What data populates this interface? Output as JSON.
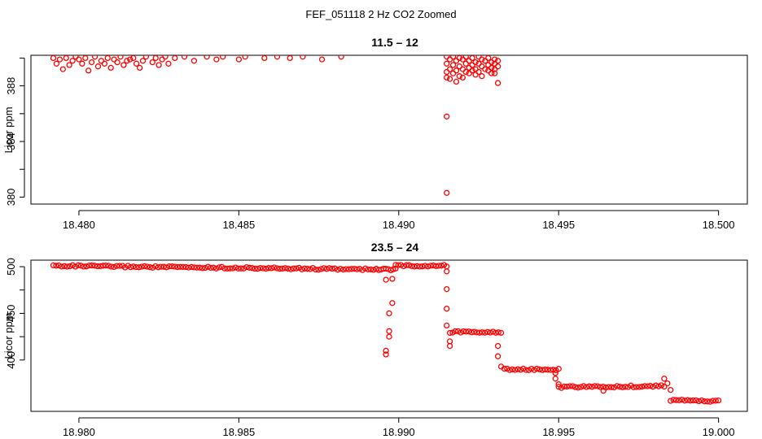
{
  "figure_title": "FEF_051118  2 Hz CO2 Zoomed",
  "chart_data": [
    {
      "type": "scatter",
      "title": "11.5 – 12",
      "xlabel": "",
      "ylabel": "Licor ppm",
      "xlim": [
        18.4785,
        18.5009
      ],
      "ylim": [
        379.5,
        390.2
      ],
      "x_ticks": [
        "18.480",
        "18.485",
        "18.490",
        "18.495",
        "18.500"
      ],
      "y_ticks": [
        "380",
        "384",
        "388"
      ],
      "grid": false,
      "marker": "open-circle",
      "color": "#ff0000",
      "series": [
        {
          "x": [
            18.4792,
            18.4793,
            18.4794,
            18.4795,
            18.4796,
            18.4797,
            18.4798,
            18.4799,
            18.48,
            18.4801,
            18.4802,
            18.4803,
            18.4804,
            18.4805,
            18.4806,
            18.4807,
            18.4808,
            18.4809,
            18.481,
            18.4811,
            18.4812,
            18.4813,
            18.4814,
            18.4815,
            18.4816,
            18.4817,
            18.4818,
            18.4819,
            18.482,
            18.4821,
            18.4823,
            18.4824,
            18.4825,
            18.4826,
            18.4827,
            18.4828,
            18.483,
            18.4833,
            18.4836,
            18.484,
            18.4843,
            18.4845,
            18.485,
            18.4852,
            18.4858,
            18.4862,
            18.4866,
            18.487,
            18.4876,
            18.4882,
            18.4915,
            18.4915,
            18.4915,
            18.4915,
            18.4915,
            18.4915,
            18.4916,
            18.4916,
            18.4916,
            18.4917,
            18.4917,
            18.4917,
            18.4918,
            18.4918,
            18.4918,
            18.4919,
            18.4919,
            18.4919,
            18.492,
            18.492,
            18.492,
            18.4921,
            18.4921,
            18.4921,
            18.4922,
            18.4922,
            18.4922,
            18.4923,
            18.4923,
            18.4923,
            18.4924,
            18.4924,
            18.4924,
            18.4925,
            18.4925,
            18.4925,
            18.4926,
            18.4926,
            18.4926,
            18.4927,
            18.4927,
            18.4928,
            18.4928,
            18.4928,
            18.4929,
            18.4929,
            18.4929,
            18.493,
            18.493,
            18.493,
            18.493,
            18.4931,
            18.4931,
            18.4931
          ],
          "y": [
            390.0,
            389.6,
            389.9,
            389.2,
            390.0,
            389.5,
            389.8,
            390.1,
            389.9,
            389.6,
            390.0,
            389.1,
            389.7,
            390.1,
            389.4,
            389.8,
            389.6,
            390.0,
            389.3,
            389.9,
            389.7,
            390.1,
            389.5,
            389.8,
            389.9,
            390.0,
            389.6,
            389.3,
            389.8,
            390.1,
            389.7,
            390.0,
            389.5,
            389.9,
            390.1,
            389.6,
            390.0,
            390.1,
            389.8,
            390.1,
            389.9,
            390.1,
            389.9,
            390.1,
            390.0,
            390.1,
            390.0,
            390.1,
            389.9,
            390.1,
            390.1,
            389.6,
            389.0,
            388.6,
            385.8,
            380.3,
            389.9,
            389.2,
            388.5,
            390.1,
            389.5,
            388.9,
            389.8,
            389.1,
            388.3,
            390.0,
            389.4,
            388.7,
            389.9,
            389.2,
            388.6,
            390.1,
            389.6,
            389.0,
            389.8,
            389.3,
            388.9,
            390.0,
            389.5,
            389.1,
            389.7,
            389.2,
            388.8,
            390.1,
            389.6,
            389.0,
            389.9,
            389.4,
            388.7,
            389.8,
            389.2,
            390.0,
            389.5,
            389.1,
            389.7,
            389.3,
            388.9,
            389.9,
            389.6,
            389.2,
            388.9,
            389.8,
            389.4,
            388.2
          ]
        }
      ]
    },
    {
      "type": "scatter",
      "title": "23.5 – 24",
      "xlabel": "",
      "ylabel": "Licor ppm",
      "xlim": [
        18.9785,
        19.0009
      ],
      "ylim": [
        345,
        507
      ],
      "x_ticks": [
        "18.980",
        "18.985",
        "18.990",
        "18.995",
        "19.000"
      ],
      "y_ticks": [
        "400",
        "450",
        "500"
      ],
      "grid": false,
      "marker": "open-circle",
      "color": "#ff0000",
      "series": [
        {
          "x": [
            18.9896,
            18.9896,
            18.9896,
            18.9897,
            18.9897,
            18.9897,
            18.9898,
            18.9898,
            18.9915,
            18.9915,
            18.9915,
            18.9915,
            18.9916,
            18.9916,
            18.9931,
            18.9931,
            18.9932,
            18.9949,
            18.9949,
            18.995,
            18.9983,
            18.9984,
            18.9985,
            18.9964
          ],
          "y": [
            486,
            406,
            410,
            425,
            450,
            431,
            461,
            487,
            495,
            476,
            455,
            437,
            420,
            415,
            415,
            404,
            393,
            386,
            380,
            374,
            380,
            375,
            368,
            367
          ]
        }
      ],
      "dense_segments": [
        {
          "x_start": 18.9792,
          "x_end": 18.9893,
          "y_start": 501,
          "y_end": 497
        },
        {
          "x_start": 18.9893,
          "x_end": 18.9899,
          "y_start": 497,
          "y_end": 497
        },
        {
          "x_start": 18.9899,
          "x_end": 18.9915,
          "y_start": 501,
          "y_end": 501
        },
        {
          "x_start": 18.9916,
          "x_end": 18.9932,
          "y_start": 430,
          "y_end": 430
        },
        {
          "x_start": 18.9933,
          "x_end": 18.995,
          "y_start": 390,
          "y_end": 390
        },
        {
          "x_start": 18.995,
          "x_end": 18.9983,
          "y_start": 371,
          "y_end": 372
        },
        {
          "x_start": 18.9985,
          "x_end": 19.0,
          "y_start": 357,
          "y_end": 356
        }
      ]
    }
  ]
}
